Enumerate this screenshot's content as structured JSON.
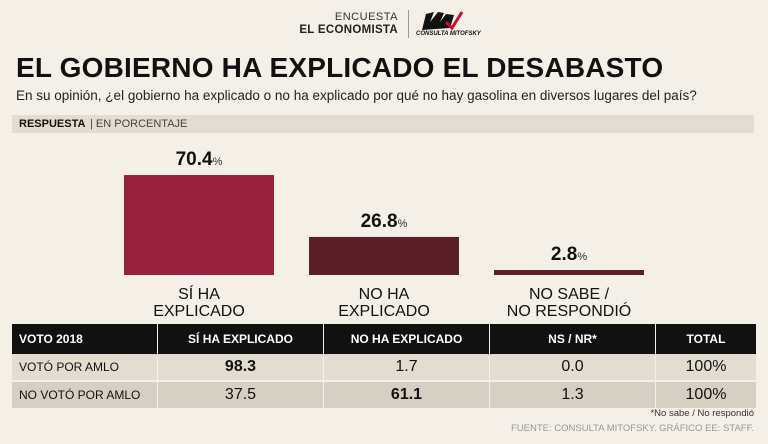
{
  "header": {
    "line1": "ENCUESTA",
    "line2": "EL ECONOMISTA",
    "logo_text": "CONSULTA MITOFSKY"
  },
  "title": "EL GOBIERNO HA EXPLICADO EL DESABASTO",
  "subtitle": "En su opinión, ¿el gobierno ha explicado o no ha explicado por qué no hay gasolina en diversos lugares del país?",
  "respuesta": {
    "label": "RESPUESTA",
    "units": "| EN PORCENTAJE"
  },
  "chart_data": {
    "type": "bar",
    "title": "EL GOBIERNO HA EXPLICADO EL DESABASTO",
    "categories": [
      [
        "SÍ HA",
        "EXPLICADO"
      ],
      [
        "NO HA",
        "EXPLICADO"
      ],
      [
        "NO SABE /",
        "NO RESPONDIÓ"
      ]
    ],
    "values": [
      70.4,
      26.8,
      2.8
    ],
    "value_labels": [
      "70.4",
      "26.8",
      "2.8"
    ],
    "unit": "%",
    "colors": [
      "#98203f",
      "#5b1f2a",
      "#5b1f2a"
    ],
    "ylim": [
      0,
      100
    ],
    "xlabel": "",
    "ylabel": "",
    "grid": false
  },
  "table": {
    "headers": [
      "VOTO 2018",
      "SÍ HA EXPLICADO",
      "NO HA EXPLICADO",
      "NS / NR*",
      "TOTAL"
    ],
    "rows": [
      {
        "label": "VOTÓ POR AMLO",
        "cells": [
          "98.3",
          "1.7",
          "0.0",
          "100%"
        ],
        "highlight": 0
      },
      {
        "label": "NO VOTÓ POR AMLO",
        "cells": [
          "37.5",
          "61.1",
          "1.3",
          "100%"
        ],
        "highlight": 1
      }
    ]
  },
  "footnote": "*No sabe / No respondió",
  "source": "FUENTE: CONSULTA MITOFSKY. GRÁFICO EE: STAFF."
}
